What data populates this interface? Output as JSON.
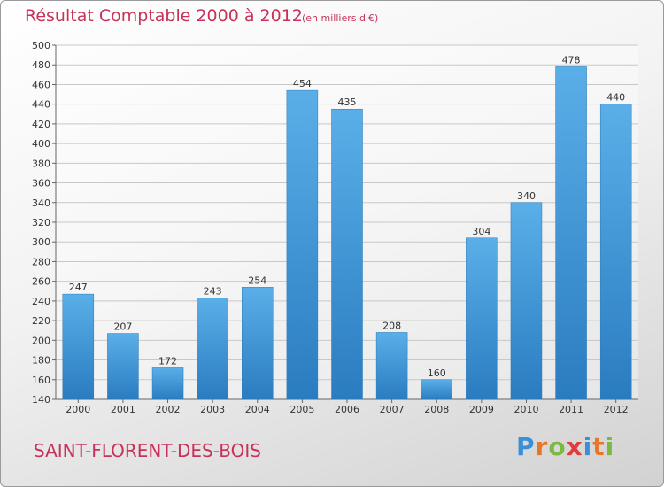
{
  "header": {
    "title": "Résultat Comptable 2000 à 2012",
    "subtitle": "(en milliers d'€)"
  },
  "footer": {
    "commune": "SAINT-FLORENT-DES-BOIS",
    "logo_text": "Proxiti",
    "logo_colors": [
      "#3b8fd6",
      "#e8762a",
      "#7cb940",
      "#e23c3c",
      "#3b8fd6",
      "#e8762a",
      "#7cb940"
    ]
  },
  "chart_data": {
    "type": "bar",
    "title": "Résultat Comptable 2000 à 2012",
    "subtitle": "(en milliers d'€)",
    "categories": [
      "2000",
      "2001",
      "2002",
      "2003",
      "2004",
      "2005",
      "2006",
      "2007",
      "2008",
      "2009",
      "2010",
      "2011",
      "2012"
    ],
    "values": [
      247,
      207,
      172,
      243,
      254,
      454,
      435,
      208,
      160,
      304,
      340,
      478,
      440
    ],
    "ylim": [
      140,
      500
    ],
    "yticks": [
      140,
      160,
      180,
      200,
      220,
      240,
      260,
      280,
      300,
      320,
      340,
      360,
      380,
      400,
      420,
      440,
      460,
      480,
      500
    ],
    "grid": true,
    "bar_color": "#3f97d8",
    "xlabel": "",
    "ylabel": ""
  }
}
